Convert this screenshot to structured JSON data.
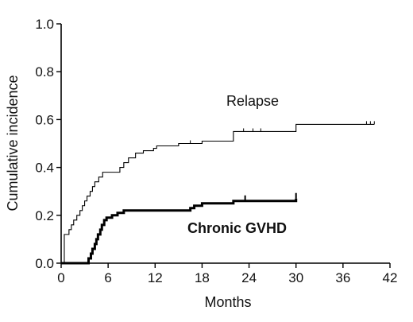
{
  "chart_data": {
    "type": "line",
    "step": true,
    "xlabel": "Months",
    "ylabel": "Cumulative incidence",
    "xlim": [
      0,
      42
    ],
    "ylim": [
      0,
      1.0
    ],
    "xticks": [
      "0",
      "6",
      "12",
      "18",
      "24",
      "30",
      "36",
      "42"
    ],
    "yticks": [
      "0.0",
      "0.2",
      "0.4",
      "0.6",
      "0.8",
      "1.0"
    ],
    "grid": false,
    "series": [
      {
        "name": "Relapse",
        "style": "thin",
        "points": [
          [
            0,
            0
          ],
          [
            0.4,
            0.12
          ],
          [
            1.0,
            0.14
          ],
          [
            1.3,
            0.16
          ],
          [
            1.6,
            0.18
          ],
          [
            2.0,
            0.2
          ],
          [
            2.4,
            0.22
          ],
          [
            2.7,
            0.24
          ],
          [
            3.0,
            0.26
          ],
          [
            3.3,
            0.28
          ],
          [
            3.7,
            0.3
          ],
          [
            4.0,
            0.32
          ],
          [
            4.3,
            0.34
          ],
          [
            4.8,
            0.36
          ],
          [
            5.3,
            0.38
          ],
          [
            7.5,
            0.4
          ],
          [
            8.0,
            0.42
          ],
          [
            8.6,
            0.44
          ],
          [
            9.5,
            0.46
          ],
          [
            10.5,
            0.47
          ],
          [
            11.8,
            0.48
          ],
          [
            12.2,
            0.49
          ],
          [
            15.0,
            0.5
          ],
          [
            16.5,
            0.5
          ],
          [
            18.0,
            0.51
          ],
          [
            22.0,
            0.55
          ],
          [
            30.0,
            0.58
          ],
          [
            40.0,
            0.58
          ]
        ],
        "censored": [
          16.5,
          23.3,
          24.5,
          25.5,
          39.0,
          39.5,
          40.0
        ]
      },
      {
        "name": "Chronic GVHD",
        "style": "thick",
        "points": [
          [
            0,
            0
          ],
          [
            3.5,
            0.02
          ],
          [
            3.8,
            0.04
          ],
          [
            4.0,
            0.06
          ],
          [
            4.3,
            0.08
          ],
          [
            4.5,
            0.1
          ],
          [
            4.7,
            0.12
          ],
          [
            5.0,
            0.14
          ],
          [
            5.2,
            0.16
          ],
          [
            5.5,
            0.18
          ],
          [
            5.8,
            0.19
          ],
          [
            6.5,
            0.2
          ],
          [
            7.2,
            0.21
          ],
          [
            8.0,
            0.22
          ],
          [
            16.5,
            0.23
          ],
          [
            17.0,
            0.24
          ],
          [
            18.0,
            0.25
          ],
          [
            22.0,
            0.26
          ],
          [
            30.0,
            0.27
          ]
        ],
        "censored": [
          23.5,
          30.0
        ]
      }
    ],
    "annotations": [
      {
        "text": "Relapse",
        "series": "Relapse"
      },
      {
        "text": "Chronic GVHD",
        "series": "Chronic GVHD"
      }
    ]
  }
}
